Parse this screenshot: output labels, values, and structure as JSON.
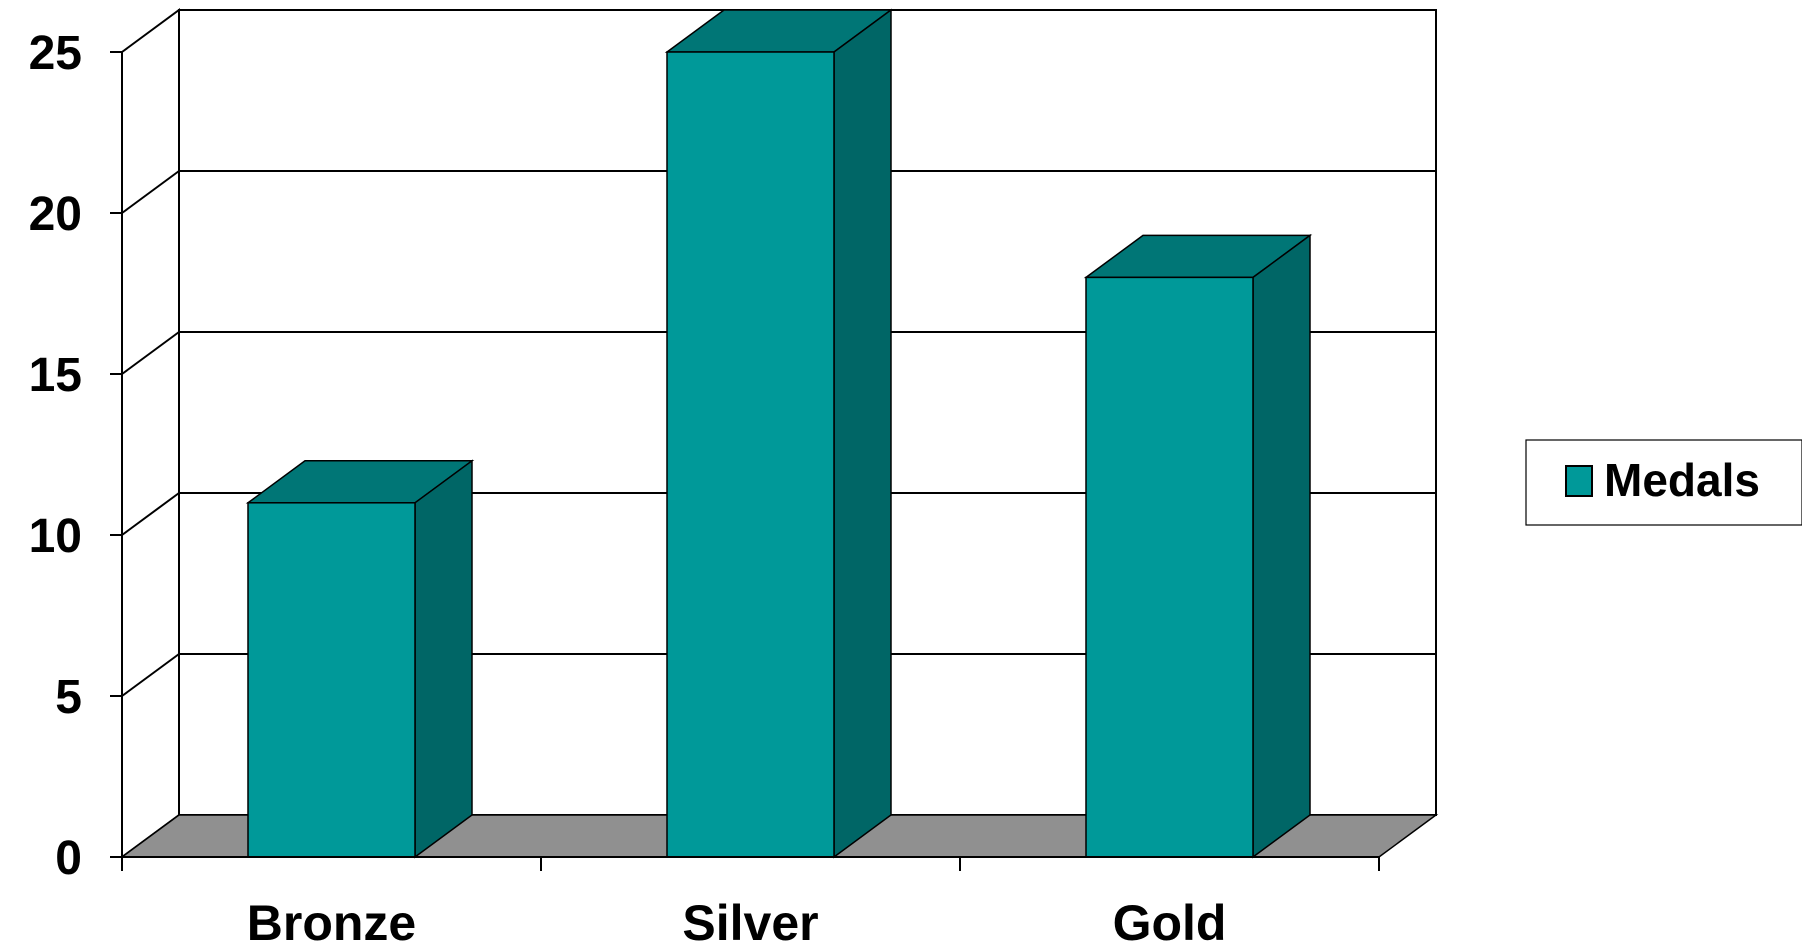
{
  "chart_data": {
    "type": "bar",
    "categories": [
      "Bronze",
      "Silver",
      "Gold"
    ],
    "series": [
      {
        "name": "Medals",
        "values": [
          11,
          25,
          18
        ]
      }
    ],
    "title": "",
    "xlabel": "",
    "ylabel": "",
    "ylim": [
      0,
      25
    ],
    "yticks": [
      "0",
      "5",
      "10",
      "15",
      "20",
      "25"
    ],
    "grid": true,
    "legend_position": "right",
    "style": "3d-column",
    "colors": {
      "bar_front": "#009999",
      "bar_top": "#007676",
      "bar_side": "#006666",
      "floor": "#909090",
      "gridline": "#000000"
    }
  }
}
